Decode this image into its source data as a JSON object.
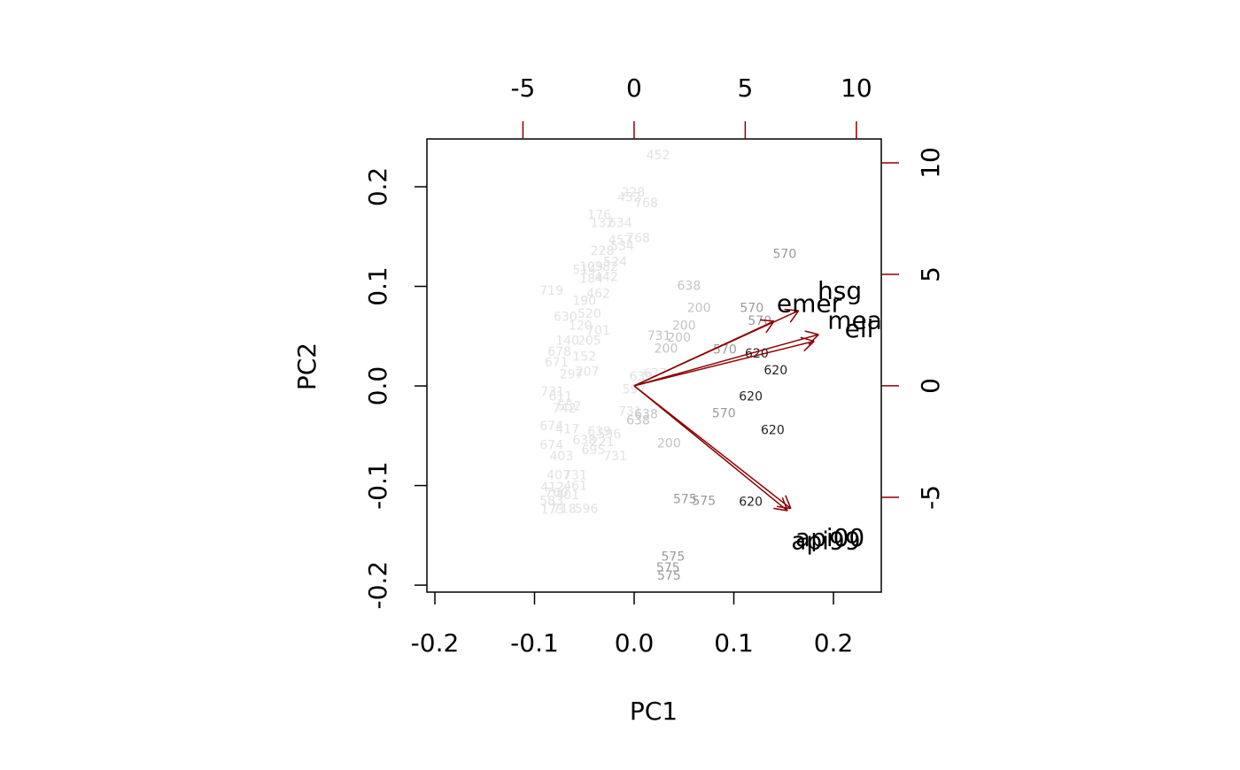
{
  "chart_data": {
    "type": "biplot",
    "x_label": "PC1",
    "y_label": "PC2",
    "xlim": [
      -0.208,
      0.248
    ],
    "ylim": [
      -0.207,
      0.248
    ],
    "xticks": [
      -0.2,
      -0.1,
      {
        "value": 0,
        "label": "0.0"
      },
      0.1,
      0.2
    ],
    "yticks": [
      -0.2,
      -0.1,
      {
        "value": 0,
        "label": "0.0"
      },
      0.1,
      0.2
    ],
    "x2lim": [
      -9.32,
      11.12
    ],
    "y2lim": [
      -9.25,
      11.07
    ],
    "x2ticks": [
      -5,
      0,
      5,
      10
    ],
    "y2ticks": [
      -5,
      0,
      5,
      10
    ],
    "axis2_color": "#8b0000",
    "series": [
      {
        "color": "#e2e2e2",
        "labels": [
          "452",
          "228",
          "452",
          "768",
          "176",
          "132",
          "634",
          "457",
          "768",
          "534",
          "228",
          "524",
          "109",
          "382",
          "514",
          "184",
          "442",
          "719",
          "462",
          "190",
          "520",
          "630",
          "701",
          "120",
          "140",
          "205",
          "678",
          "152",
          "671",
          "207",
          "297",
          "731",
          "611",
          "552",
          "742",
          "674",
          "417",
          "639",
          "596",
          "638",
          "221",
          "674",
          "695",
          "403",
          "731",
          "597",
          "639",
          "627",
          "731",
          "407",
          "731",
          "461",
          "412",
          "401",
          "760",
          "583",
          "718",
          "596",
          "173"
        ],
        "x": [
          0.024,
          -0.001,
          -0.005,
          0.012,
          -0.035,
          -0.032,
          -0.014,
          -0.014,
          0.004,
          -0.012,
          -0.032,
          -0.019,
          -0.043,
          -0.028,
          -0.05,
          -0.043,
          -0.028,
          -0.083,
          -0.036,
          -0.05,
          -0.045,
          -0.069,
          -0.036,
          -0.054,
          -0.067,
          -0.045,
          -0.075,
          -0.05,
          -0.078,
          -0.047,
          -0.063,
          -0.082,
          -0.074,
          -0.065,
          -0.07,
          -0.083,
          -0.067,
          -0.035,
          -0.025,
          -0.05,
          -0.032,
          -0.083,
          -0.041,
          -0.073,
          -0.019,
          0,
          0.007,
          0.021,
          -0.004,
          -0.076,
          -0.059,
          -0.059,
          -0.082,
          -0.067,
          -0.078,
          -0.083,
          -0.07,
          -0.048,
          -0.082
        ],
        "y": [
          0.231,
          0.194,
          0.189,
          0.183,
          0.171,
          0.163,
          0.163,
          0.146,
          0.148,
          0.14,
          0.135,
          0.124,
          0.119,
          0.119,
          0.116,
          0.107,
          0.109,
          0.095,
          0.092,
          0.085,
          0.072,
          0.069,
          0.055,
          0.06,
          0.045,
          0.045,
          0.034,
          0.029,
          0.023,
          0.014,
          0.011,
          -0.006,
          -0.011,
          -0.021,
          -0.023,
          -0.041,
          -0.044,
          -0.046,
          -0.049,
          -0.055,
          -0.057,
          -0.06,
          -0.065,
          -0.071,
          -0.071,
          -0.004,
          0.009,
          0.012,
          -0.026,
          -0.09,
          -0.09,
          -0.101,
          -0.102,
          -0.11,
          -0.108,
          -0.116,
          -0.124,
          -0.124,
          -0.125
        ]
      },
      {
        "color": "#c4c4c4",
        "labels": [
          "638",
          "200",
          "200",
          "731",
          "200",
          "200",
          "200",
          "638",
          "638"
        ],
        "x": [
          0.055,
          0.065,
          0.05,
          0.025,
          0.045,
          0.032,
          0.035,
          0.004,
          0.012
        ],
        "y": [
          0.1,
          0.078,
          0.06,
          0.05,
          0.048,
          0.037,
          -0.058,
          -0.035,
          -0.029
        ]
      },
      {
        "color": "#9a9a9a",
        "labels": [
          "570",
          "570",
          "570",
          "570",
          "570",
          "575",
          "575",
          "575",
          "575",
          "575"
        ],
        "x": [
          0.151,
          0.118,
          0.126,
          0.091,
          0.09,
          0.051,
          0.07,
          0.039,
          0.034,
          0.035
        ],
        "y": [
          0.132,
          0.078,
          0.065,
          0.036,
          -0.028,
          -0.114,
          -0.116,
          -0.172,
          -0.183,
          -0.191
        ]
      },
      {
        "color": "#222222",
        "labels": [
          "620",
          "620",
          "620",
          "620",
          "620"
        ],
        "x": [
          0.123,
          0.142,
          0.117,
          0.139,
          0.117
        ],
        "y": [
          0.032,
          0.015,
          -0.011,
          -0.045,
          -0.117
        ]
      }
    ],
    "loadings": {
      "color": "#8b0000",
      "names": [
        "hsg",
        "emer",
        "meals",
        "ell",
        "api00",
        "api99"
      ],
      "x": [
        7.4,
        6.3,
        8.3,
        8.1,
        7.05,
        6.9
      ],
      "y": [
        3.37,
        2.9,
        2.3,
        2.0,
        -5.5,
        -5.6
      ]
    }
  }
}
